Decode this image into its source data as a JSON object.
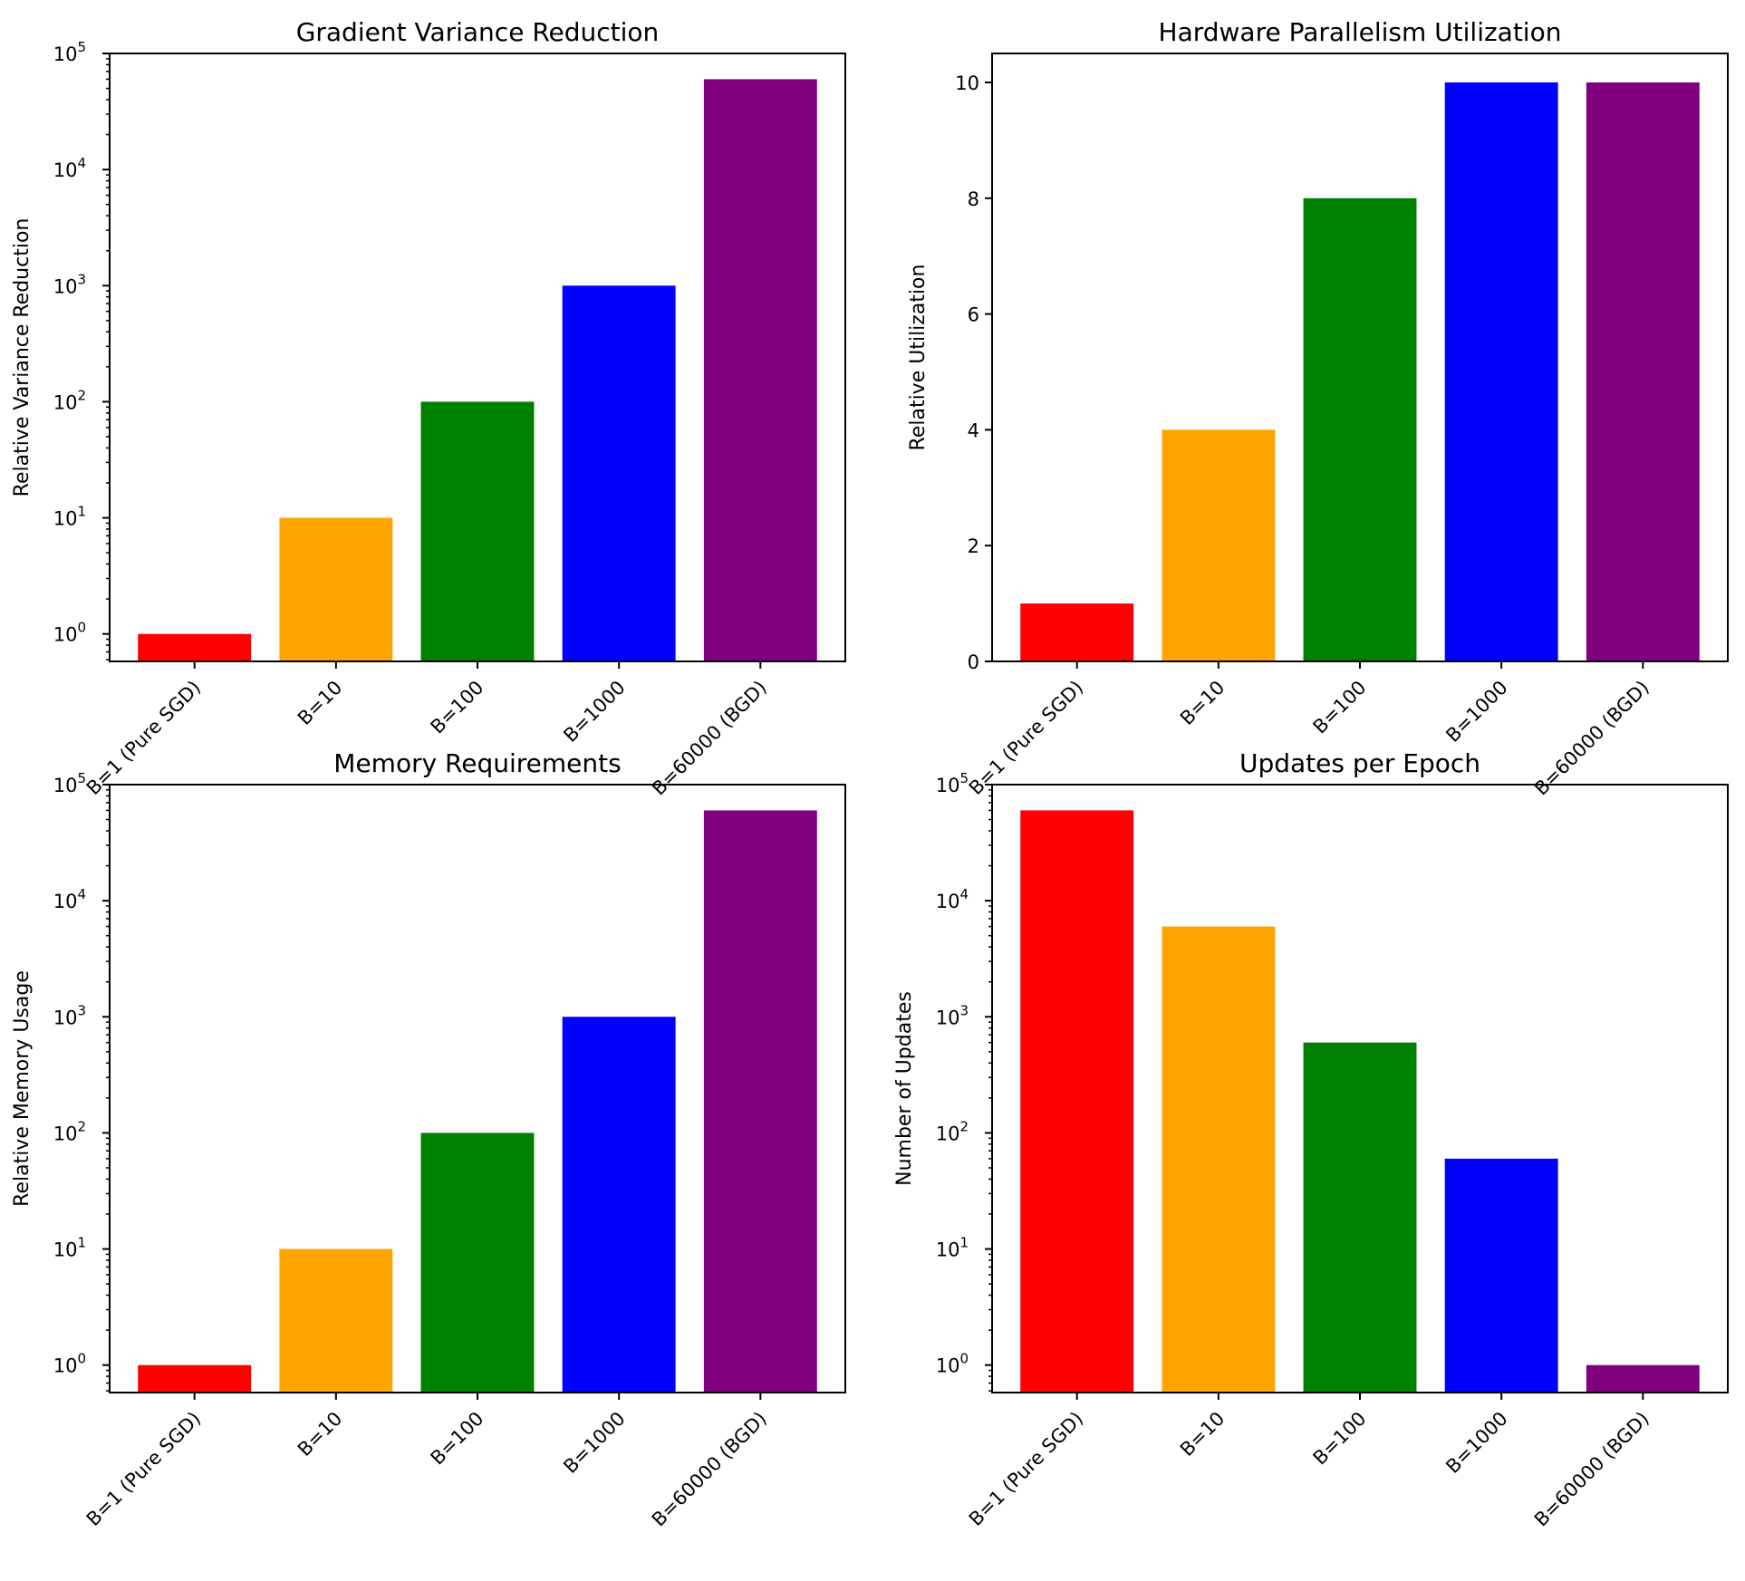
{
  "chart_data": [
    {
      "type": "bar",
      "title": "Gradient Variance Reduction",
      "xlabel": "",
      "ylabel": "Relative Variance Reduction",
      "yscale": "log",
      "ylim": [
        0.58,
        100000
      ],
      "yticks": [
        1,
        10,
        100,
        1000,
        10000,
        100000
      ],
      "ytick_labels": [
        "10^0",
        "10^1",
        "10^2",
        "10^3",
        "10^4",
        "10^5"
      ],
      "categories": [
        "B=1 (Pure SGD)",
        "B=10",
        "B=100",
        "B=1000",
        "B=60000 (BGD)"
      ],
      "values": [
        1,
        10,
        100,
        1000,
        60000
      ],
      "colors": [
        "#ff0000",
        "#ffa500",
        "#008000",
        "#0000ff",
        "#800080"
      ],
      "grid": false
    },
    {
      "type": "bar",
      "title": "Hardware Parallelism Utilization",
      "xlabel": "",
      "ylabel": "Relative Utilization",
      "yscale": "linear",
      "ylim": [
        0,
        10.5
      ],
      "yticks": [
        0,
        2,
        4,
        6,
        8,
        10
      ],
      "ytick_labels": [
        "0",
        "2",
        "4",
        "6",
        "8",
        "10"
      ],
      "categories": [
        "B=1 (Pure SGD)",
        "B=10",
        "B=100",
        "B=1000",
        "B=60000 (BGD)"
      ],
      "values": [
        1,
        4,
        8,
        10,
        10
      ],
      "colors": [
        "#ff0000",
        "#ffa500",
        "#008000",
        "#0000ff",
        "#800080"
      ],
      "grid": false
    },
    {
      "type": "bar",
      "title": "Memory Requirements",
      "xlabel": "",
      "ylabel": "Relative Memory Usage",
      "yscale": "log",
      "ylim": [
        0.58,
        100000
      ],
      "yticks": [
        1,
        10,
        100,
        1000,
        10000,
        100000
      ],
      "ytick_labels": [
        "10^0",
        "10^1",
        "10^2",
        "10^3",
        "10^4",
        "10^5"
      ],
      "categories": [
        "B=1 (Pure SGD)",
        "B=10",
        "B=100",
        "B=1000",
        "B=60000 (BGD)"
      ],
      "values": [
        1,
        10,
        100,
        1000,
        60000
      ],
      "colors": [
        "#ff0000",
        "#ffa500",
        "#008000",
        "#0000ff",
        "#800080"
      ],
      "grid": false
    },
    {
      "type": "bar",
      "title": "Updates per Epoch",
      "xlabel": "",
      "ylabel": "Number of Updates",
      "yscale": "log",
      "ylim": [
        0.58,
        100000
      ],
      "yticks": [
        1,
        10,
        100,
        1000,
        10000,
        100000
      ],
      "ytick_labels": [
        "10^0",
        "10^1",
        "10^2",
        "10^3",
        "10^4",
        "10^5"
      ],
      "categories": [
        "B=1 (Pure SGD)",
        "B=10",
        "B=100",
        "B=1000",
        "B=60000 (BGD)"
      ],
      "values": [
        60000,
        6000,
        600,
        60,
        1
      ],
      "colors": [
        "#ff0000",
        "#ffa500",
        "#008000",
        "#0000ff",
        "#800080"
      ],
      "grid": false
    }
  ]
}
